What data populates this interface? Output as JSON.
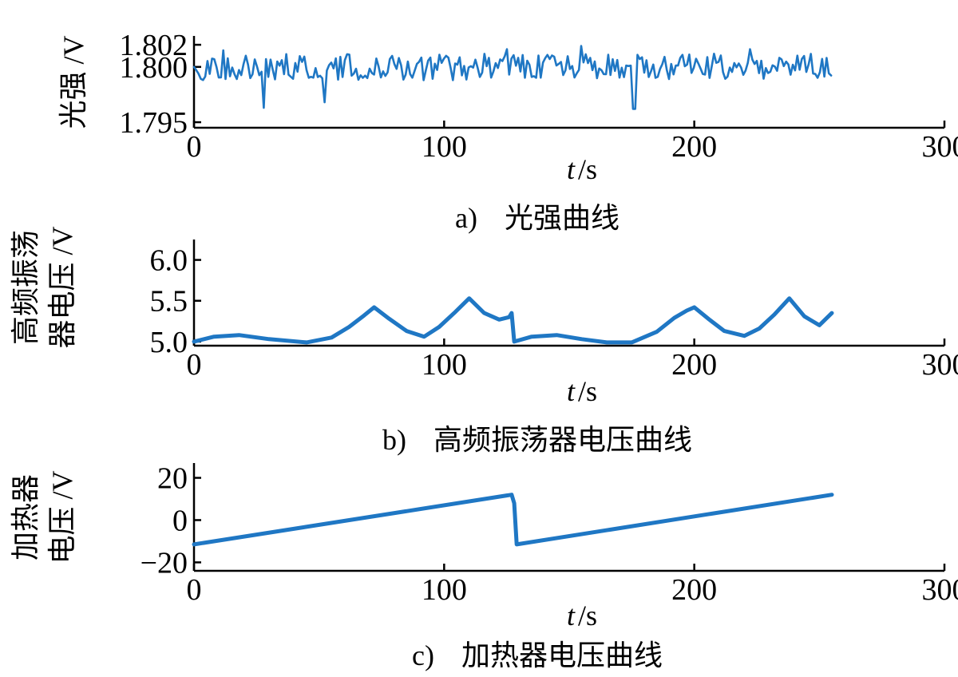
{
  "chart_data": [
    {
      "type": "line",
      "id": "a",
      "title": "",
      "caption_letter": "a)",
      "caption_text": "光强曲线",
      "ylabel_lines": [
        "光强 /V"
      ],
      "xlabel_var": "t",
      "xlabel_unit": "/s",
      "xlim": [
        0,
        300
      ],
      "ylim": [
        1.7945,
        1.8028
      ],
      "xticks": [
        0,
        100,
        200,
        300
      ],
      "yticks": [
        1.795,
        1.8,
        1.802
      ],
      "ytick_labels": [
        "1.795",
        "1.800",
        "1.802"
      ],
      "color": "#1f77c4",
      "noise": {
        "start": 0,
        "end": 255,
        "center": 1.8,
        "amplitude": 0.0012,
        "spikes": [
          [
            12,
            1.8015
          ],
          [
            28,
            1.7963
          ],
          [
            52,
            1.7968
          ],
          [
            125,
            1.8016
          ],
          [
            155,
            1.8019
          ],
          [
            176,
            1.7962
          ],
          [
            222,
            1.8016
          ]
        ]
      }
    },
    {
      "type": "line",
      "id": "b",
      "title": "",
      "caption_letter": "b)",
      "caption_text": "高频振荡器电压曲线",
      "ylabel_lines": [
        "高频振荡",
        "器电压 /V"
      ],
      "xlabel_var": "t",
      "xlabel_unit": "/s",
      "xlim": [
        0,
        300
      ],
      "ylim": [
        4.95,
        6.25
      ],
      "xticks": [
        0,
        100,
        200,
        300
      ],
      "yticks": [
        5.0,
        5.5,
        6.0
      ],
      "ytick_labels": [
        "5.0",
        "5.5",
        "6.0"
      ],
      "color": "#1f77c4",
      "series": [
        {
          "x": [
            0,
            8,
            18,
            30,
            45,
            55,
            62,
            68,
            72,
            78,
            85,
            92,
            98,
            104,
            110,
            116,
            122,
            126,
            127,
            128,
            135,
            145,
            155,
            165,
            175,
            185,
            192,
            197,
            200,
            206,
            212,
            220,
            226,
            232,
            238,
            244,
            250,
            255
          ],
          "y": [
            5.0,
            5.06,
            5.08,
            5.03,
            4.99,
            5.05,
            5.18,
            5.32,
            5.42,
            5.28,
            5.13,
            5.06,
            5.18,
            5.35,
            5.53,
            5.35,
            5.27,
            5.3,
            5.35,
            5.0,
            5.06,
            5.08,
            5.03,
            4.99,
            4.99,
            5.12,
            5.29,
            5.38,
            5.42,
            5.27,
            5.13,
            5.07,
            5.16,
            5.33,
            5.53,
            5.31,
            5.2,
            5.35
          ]
        }
      ]
    },
    {
      "type": "line",
      "id": "c",
      "title": "",
      "caption_letter": "c)",
      "caption_text": "加热器电压曲线",
      "ylabel_lines": [
        "加热器",
        "电压 /V"
      ],
      "xlabel_var": "t",
      "xlabel_unit": "/s",
      "xlim": [
        0,
        300
      ],
      "ylim": [
        -24,
        27
      ],
      "xticks": [
        0,
        100,
        200,
        300
      ],
      "yticks": [
        -20,
        0,
        20
      ],
      "ytick_labels": [
        "−20",
        "0",
        "20"
      ],
      "color": "#1f77c4",
      "series": [
        {
          "x": [
            0,
            127,
            128,
            129,
            255
          ],
          "y": [
            -11.5,
            12,
            8,
            -11.5,
            12
          ]
        }
      ]
    }
  ]
}
